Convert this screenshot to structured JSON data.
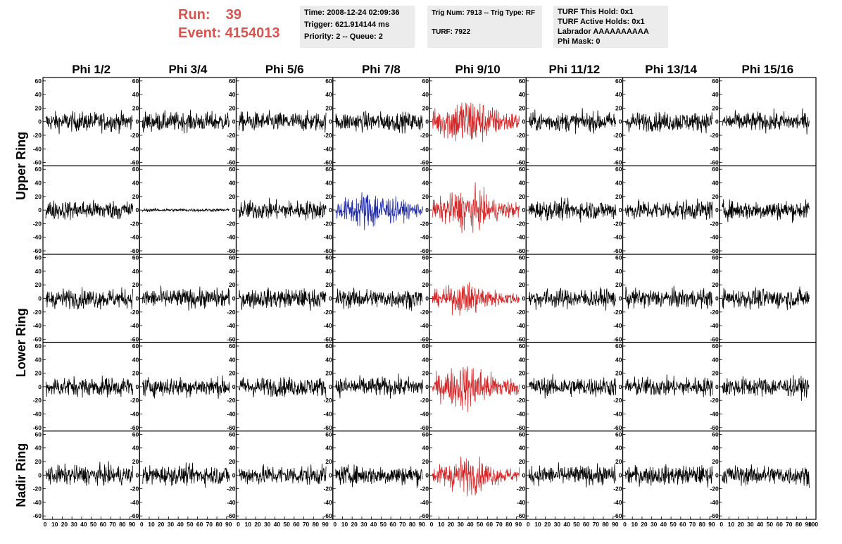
{
  "header": {
    "run_label": "Run:",
    "run_value": "39",
    "event_label": "Event:",
    "event_value": "4154013",
    "time": "Time: 2008-12-24 02:09:36",
    "trigger": "Trigger: 621.914144 ms",
    "priority": "Priority: 2 -- Queue: 2",
    "trig_num": "Trig Num: 7913 -- Trig Type: RF",
    "turf": "TURF: 7922",
    "turf_this_hold": "TURF This Hold: 0x1",
    "turf_active_holds": "TURF Active Holds: 0x1",
    "labrador": "Labrador AAAAAAAAAA",
    "phi_mask": "Phi Mask: 0"
  },
  "colors": {
    "header_text": "#d9534f",
    "box_bg": "#ececec",
    "trace_default": "#000000",
    "trace_red": "#d62728",
    "trace_blue": "#1f2aa8"
  },
  "chart_data": {
    "type": "line",
    "columns": [
      "Phi 1/2",
      "Phi 3/4",
      "Phi 5/6",
      "Phi 7/8",
      "Phi 9/10",
      "Phi 11/12",
      "Phi 13/14",
      "Phi 15/16"
    ],
    "rows": [
      "Upper Ring",
      "Upper Ring",
      "Lower Ring",
      "Lower Ring",
      "Nadir Ring"
    ],
    "row_labels": [
      "Upper Ring",
      "Lower Ring",
      "Nadir Ring"
    ],
    "ylim": [
      -65,
      65
    ],
    "yticks": [
      -60,
      -40,
      -20,
      0,
      20,
      40,
      60
    ],
    "xlim": [
      0,
      100
    ],
    "xtick_labels": [
      "0",
      "10",
      "20",
      "30",
      "40",
      "50",
      "60",
      "70",
      "80",
      "90",
      "100"
    ],
    "last_xtick_label": "100",
    "samples_per_trace": 260,
    "highlight": [
      {
        "row": 0,
        "col": 4,
        "color": "red",
        "peak": 50
      },
      {
        "row": 1,
        "col": 3,
        "color": "blue",
        "peak": 38
      },
      {
        "row": 1,
        "col": 4,
        "color": "red",
        "peak": 40
      },
      {
        "row": 2,
        "col": 4,
        "color": "red",
        "peak": 30
      },
      {
        "row": 3,
        "col": 4,
        "color": "red",
        "peak": 45
      },
      {
        "row": 4,
        "col": 4,
        "color": "red",
        "peak": 35
      }
    ],
    "flat": [
      {
        "row": 1,
        "col": 1,
        "amplitude": 3
      }
    ],
    "default_amplitude": 18
  }
}
